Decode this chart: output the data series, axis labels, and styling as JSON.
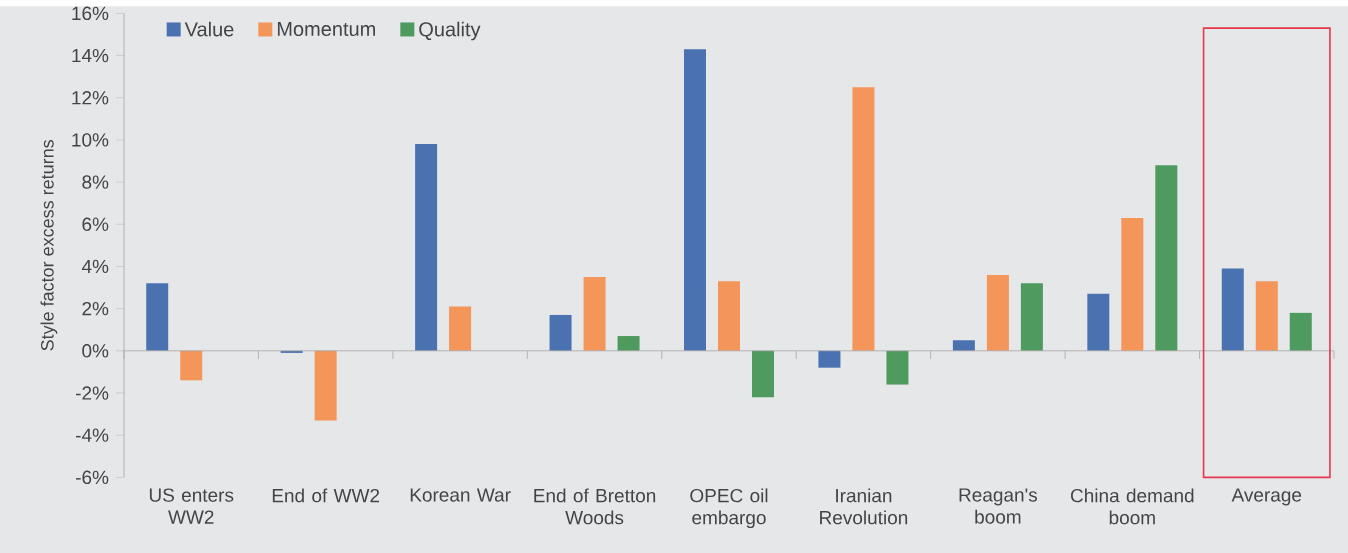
{
  "chart_data": {
    "type": "bar",
    "ylabel": "Style factor excess returns",
    "categories": [
      "US enters WW2",
      "End of WW2",
      "Korean War",
      "End of Bretton Woods",
      "OPEC oil embargo",
      "Iranian Revolution",
      "Reagan's boom",
      "China demand boom",
      "Average"
    ],
    "series": [
      {
        "name": "Value",
        "color": "#4a72b0",
        "values": [
          3.2,
          -0.1,
          9.8,
          1.7,
          14.3,
          -0.8,
          0.5,
          2.7,
          3.9
        ]
      },
      {
        "name": "Momentum",
        "color": "#f4955a",
        "values": [
          -1.4,
          -3.3,
          2.1,
          3.5,
          3.3,
          12.5,
          3.6,
          6.3,
          3.3
        ]
      },
      {
        "name": "Quality",
        "color": "#4f9a5f",
        "values": [
          null,
          null,
          null,
          0.7,
          -2.2,
          -1.6,
          3.2,
          8.8,
          1.8
        ]
      }
    ],
    "ylim": [
      -6,
      16
    ],
    "yticks": [
      {
        "value": -6,
        "label": "-6%"
      },
      {
        "value": -4,
        "label": "-4%"
      },
      {
        "value": -2,
        "label": "-2%"
      },
      {
        "value": 0,
        "label": "0%"
      },
      {
        "value": 2,
        "label": "2%"
      },
      {
        "value": 4,
        "label": "4%"
      },
      {
        "value": 6,
        "label": "6%"
      },
      {
        "value": 8,
        "label": "8%"
      },
      {
        "value": 10,
        "label": "10%"
      },
      {
        "value": 12,
        "label": "12%"
      },
      {
        "value": 14,
        "label": "14%"
      },
      {
        "value": 16,
        "label": "16%"
      }
    ],
    "legend": "top left"
  }
}
